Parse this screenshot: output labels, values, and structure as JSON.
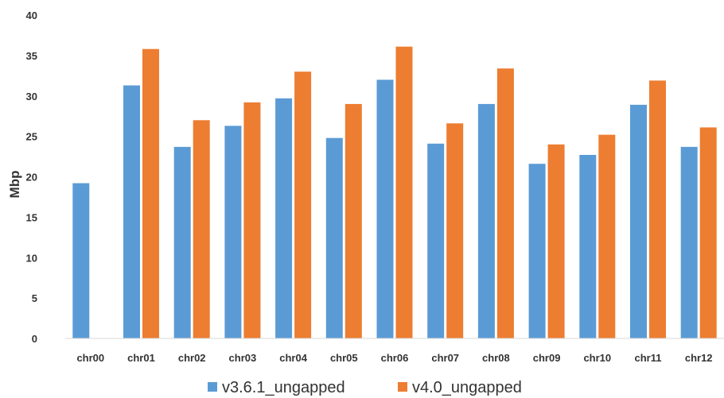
{
  "chart_data": {
    "type": "bar",
    "title": "",
    "xlabel": "",
    "ylabel": "Mbp",
    "ylim": [
      0,
      40
    ],
    "yticks": [
      0,
      5,
      10,
      15,
      20,
      25,
      30,
      35,
      40
    ],
    "grid": false,
    "legend_position": "bottom",
    "categories": [
      "chr00",
      "chr01",
      "chr02",
      "chr03",
      "chr04",
      "chr05",
      "chr06",
      "chr07",
      "chr08",
      "chr09",
      "chr10",
      "chr11",
      "chr12"
    ],
    "series": [
      {
        "name": "v3.6.1_ungapped",
        "color": "#5b9bd5",
        "values": [
          19.2,
          31.3,
          23.7,
          26.3,
          29.7,
          24.8,
          32.0,
          24.1,
          29.0,
          21.6,
          22.7,
          28.9,
          23.7
        ]
      },
      {
        "name": "v4.0_ungapped",
        "color": "#ed7d31",
        "values": [
          null,
          35.8,
          27.0,
          29.2,
          33.0,
          29.0,
          36.1,
          26.6,
          33.4,
          24.0,
          25.2,
          31.9,
          26.1
        ]
      }
    ]
  }
}
